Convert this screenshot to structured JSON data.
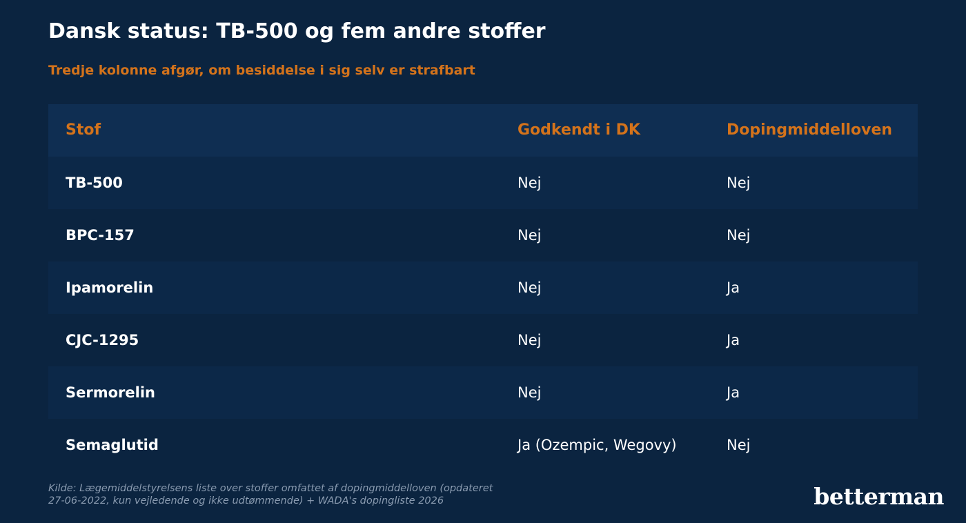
{
  "title": "Dansk status: TB-500 og fem andre stoffer",
  "subtitle": "Tredje kolonne afgør, om besiddelse i sig selv er strafbart",
  "table": {
    "headers": [
      "Stof",
      "Godkendt i DK",
      "Dopingmiddelloven"
    ],
    "rows": [
      {
        "stof": "TB-500",
        "godkendt": "Nej",
        "doping": "Nej"
      },
      {
        "stof": "BPC-157",
        "godkendt": "Nej",
        "doping": "Nej"
      },
      {
        "stof": "Ipamorelin",
        "godkendt": "Nej",
        "doping": "Ja"
      },
      {
        "stof": "CJC-1295",
        "godkendt": "Nej",
        "doping": "Ja"
      },
      {
        "stof": "Sermorelin",
        "godkendt": "Nej",
        "doping": "Ja"
      },
      {
        "stof": "Semaglutid",
        "godkendt": "Ja (Ozempic, Wegovy)",
        "doping": "Nej"
      }
    ]
  },
  "source_line1": "Kilde: Lægemiddelstyrelsens liste over stoffer omfattet af dopingmiddelloven (opdateret",
  "source_line2": "27-06-2022, kun vejledende og ikke udtømmende) + WADA's dopingliste 2026",
  "logo": "betterman",
  "colors": {
    "background": "#0b2440",
    "header_row": "#0f2e52",
    "alt_row": "#0c2848",
    "accent": "#d4731b",
    "text": "#ffffff",
    "muted": "#8a9bb0"
  }
}
